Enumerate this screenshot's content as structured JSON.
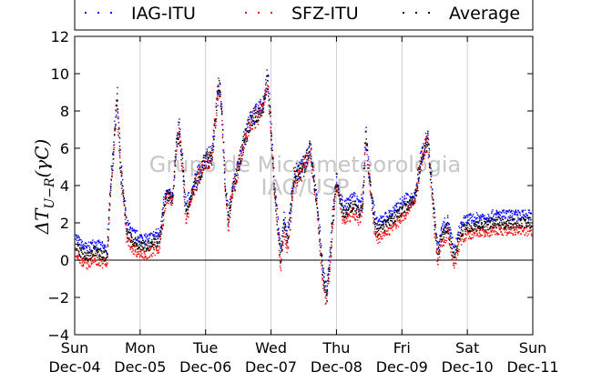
{
  "chart_data": {
    "type": "scatter",
    "title": "",
    "xlabel": "",
    "ylabel": "ΔT",
    "ylabel_sub": "U−R",
    "ylabel_unit": "(γC)",
    "ylim": [
      -4,
      12
    ],
    "yticks": [
      "−4",
      "−2",
      "0",
      "2",
      "4",
      "6",
      "8",
      "10",
      "12"
    ],
    "ytick_values": [
      -4,
      -2,
      0,
      2,
      4,
      6,
      8,
      10,
      12
    ],
    "xlim": [
      0,
      7
    ],
    "x_units": "days since Sun Dec-04 00:00",
    "xtick_values": [
      0,
      1,
      2,
      3,
      4,
      5,
      6,
      7
    ],
    "xticks_top": [
      "Sun",
      "Mon",
      "Tue",
      "Wed",
      "Thu",
      "Fri",
      "Sat",
      "Sun"
    ],
    "xticks_bottom": [
      "Dec-04",
      "Dec-05",
      "Dec-06",
      "Dec-07",
      "Dec-08",
      "Dec-09",
      "Dec-10",
      "Dec-11"
    ],
    "grid": "vertical",
    "zero_line": true,
    "legend_position": "top",
    "watermark": [
      "Grupo de Micrometeorologia",
      "IAG/USP"
    ],
    "series": [
      {
        "name": "IAG-ITU",
        "color": "#0000ff",
        "offset": 0.5
      },
      {
        "name": "SFZ-ITU",
        "color": "#ff0000",
        "offset": -0.5
      },
      {
        "name": "Average",
        "color": "#000000",
        "offset": 0
      }
    ],
    "x": [
      0,
      0.1,
      0.2,
      0.3,
      0.4,
      0.5,
      0.55,
      0.6,
      0.65,
      0.7,
      0.8,
      0.9,
      1.0,
      1.1,
      1.2,
      1.3,
      1.4,
      1.5,
      1.55,
      1.6,
      1.65,
      1.7,
      1.8,
      1.9,
      2.0,
      2.1,
      2.2,
      2.25,
      2.3,
      2.35,
      2.4,
      2.5,
      2.6,
      2.7,
      2.8,
      2.9,
      2.95,
      3.0,
      3.05,
      3.1,
      3.15,
      3.2,
      3.25,
      3.3,
      3.35,
      3.4,
      3.45,
      3.5,
      3.6,
      3.7,
      3.8,
      3.85,
      3.9,
      3.95,
      4.0,
      4.1,
      4.2,
      4.25,
      4.3,
      4.35,
      4.4,
      4.45,
      4.5,
      4.55,
      4.6,
      4.65,
      4.7,
      4.8,
      4.9,
      5.0,
      5.1,
      5.2,
      5.3,
      5.4,
      5.5,
      5.55,
      5.6,
      5.7,
      5.8,
      5.9,
      6.0,
      6.1,
      6.2,
      6.3,
      6.4,
      6.5,
      6.55,
      6.6,
      6.7,
      6.8,
      6.9,
      7.0
    ],
    "y": [
      0.9,
      0.4,
      0.2,
      0.5,
      0.3,
      0.2,
      4,
      6,
      8.7,
      5,
      1.5,
      1.0,
      0.8,
      0.7,
      0.9,
      1.1,
      3.5,
      3.3,
      6,
      7,
      5,
      2.5,
      3.7,
      4.6,
      5.3,
      5.6,
      9.5,
      8,
      4,
      2,
      3.5,
      5.0,
      6.5,
      7.6,
      7.8,
      8.5,
      9.8,
      7,
      4,
      2,
      0,
      2,
      1,
      2.5,
      4.5,
      4.6,
      4.7,
      5.0,
      6.0,
      3,
      -1,
      -2,
      0,
      2.5,
      4.2,
      2.5,
      2.7,
      3,
      2.8,
      2.5,
      3.0,
      6.8,
      4.5,
      3,
      1.6,
      1.6,
      1.8,
      2.0,
      2.3,
      2.7,
      3.0,
      3.3,
      5.5,
      6.5,
      2,
      0.2,
      1.2,
      1.8,
      0.1,
      1.5,
      1.8,
      1.8,
      1.9,
      1.9,
      2.0,
      2.0,
      2.0,
      2.0,
      2.0,
      2.0,
      2.0,
      2.0
    ]
  }
}
